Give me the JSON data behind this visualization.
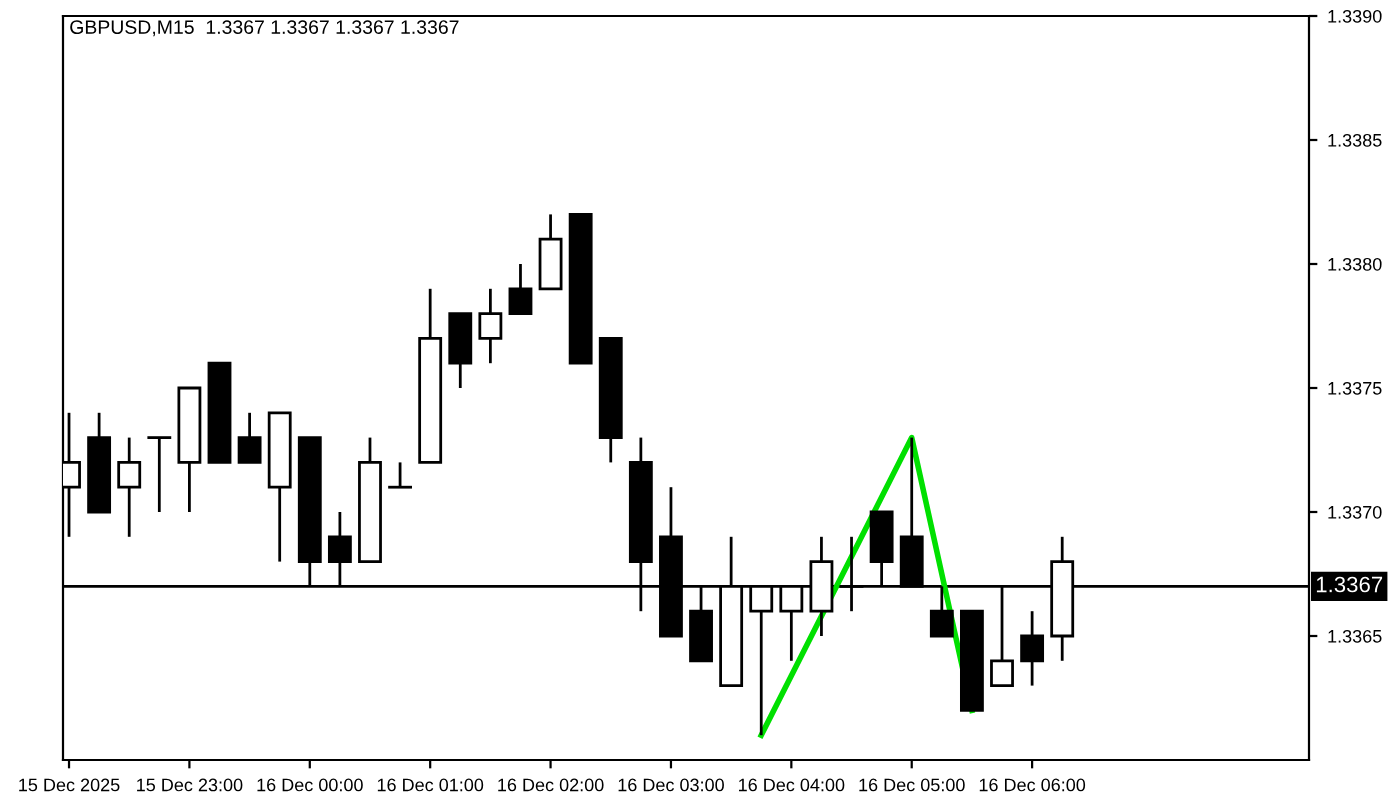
{
  "chart_data": {
    "type": "candlestick",
    "title": "GBPUSD,M15  1.3367 1.3367 1.3367 1.3367",
    "x": [
      "2025-12-15T22:00",
      "2025-12-15T22:15",
      "2025-12-15T22:30",
      "2025-12-15T22:45",
      "2025-12-15T23:00",
      "2025-12-15T23:15",
      "2025-12-15T23:30",
      "2025-12-15T23:45",
      "2025-12-16T00:00",
      "2025-12-16T00:15",
      "2025-12-16T00:30",
      "2025-12-16T00:45",
      "2025-12-16T01:00",
      "2025-12-16T01:15",
      "2025-12-16T01:30",
      "2025-12-16T01:45",
      "2025-12-16T02:00",
      "2025-12-16T02:15",
      "2025-12-16T02:30",
      "2025-12-16T02:45",
      "2025-12-16T03:00",
      "2025-12-16T03:15",
      "2025-12-16T03:30",
      "2025-12-16T03:45",
      "2025-12-16T04:00",
      "2025-12-16T04:15",
      "2025-12-16T04:30",
      "2025-12-16T04:45",
      "2025-12-16T05:00",
      "2025-12-16T05:15",
      "2025-12-16T05:30",
      "2025-12-16T05:45",
      "2025-12-16T06:00",
      "2025-12-16T06:15"
    ],
    "ohlc": [
      [
        1.3371,
        1.3374,
        1.3369,
        1.3372
      ],
      [
        1.3373,
        1.3374,
        1.337,
        1.337
      ],
      [
        1.3371,
        1.3373,
        1.3369,
        1.3372
      ],
      [
        1.3373,
        1.3373,
        1.337,
        1.3373
      ],
      [
        1.3372,
        1.3375,
        1.337,
        1.3375
      ],
      [
        1.3376,
        1.3376,
        1.3372,
        1.3372
      ],
      [
        1.3373,
        1.3374,
        1.3372,
        1.3372
      ],
      [
        1.3371,
        1.3374,
        1.3368,
        1.3374
      ],
      [
        1.3373,
        1.3373,
        1.3367,
        1.3368
      ],
      [
        1.3369,
        1.337,
        1.3367,
        1.3368
      ],
      [
        1.3368,
        1.3373,
        1.3368,
        1.3372
      ],
      [
        1.3371,
        1.3372,
        1.3371,
        1.3371
      ],
      [
        1.3372,
        1.3379,
        1.3372,
        1.3377
      ],
      [
        1.3378,
        1.3378,
        1.3375,
        1.3376
      ],
      [
        1.3377,
        1.3379,
        1.3376,
        1.3378
      ],
      [
        1.3379,
        1.338,
        1.3378,
        1.3378
      ],
      [
        1.3379,
        1.3382,
        1.3379,
        1.3381
      ],
      [
        1.3382,
        1.3382,
        1.3376,
        1.3376
      ],
      [
        1.3377,
        1.3377,
        1.3372,
        1.3373
      ],
      [
        1.3372,
        1.3373,
        1.3366,
        1.3368
      ],
      [
        1.3369,
        1.3371,
        1.3365,
        1.3365
      ],
      [
        1.3366,
        1.3367,
        1.3364,
        1.3364
      ],
      [
        1.3363,
        1.3369,
        1.3363,
        1.3367
      ],
      [
        1.3366,
        1.3367,
        1.3361,
        1.3367
      ],
      [
        1.3366,
        1.3367,
        1.3364,
        1.3367
      ],
      [
        1.3366,
        1.3369,
        1.3365,
        1.3368
      ],
      [
        1.3367,
        1.3369,
        1.3366,
        1.3367
      ],
      [
        1.337,
        1.337,
        1.3367,
        1.3368
      ],
      [
        1.3369,
        1.3373,
        1.3367,
        1.3367
      ],
      [
        1.3366,
        1.3367,
        1.3365,
        1.3365
      ],
      [
        1.3366,
        1.3366,
        1.3362,
        1.3362
      ],
      [
        1.3363,
        1.3367,
        1.3363,
        1.3364
      ],
      [
        1.3365,
        1.3366,
        1.3363,
        1.3364
      ],
      [
        1.3365,
        1.3369,
        1.3364,
        1.3368
      ]
    ],
    "series": [
      {
        "type": "line",
        "color": "#00e000",
        "x": [
          "2025-12-16T03:45",
          "2025-12-16T05:00",
          "2025-12-16T05:30"
        ],
        "values": [
          1.3361,
          1.3373,
          1.3362
        ]
      }
    ],
    "ref_lines": [
      {
        "axis": "y",
        "value": 1.3367,
        "label": "1.3367",
        "color": "#000000"
      }
    ],
    "xlim": [
      "2025-12-15T21:57",
      "2025-12-16T08:18"
    ],
    "xticks": [
      {
        "value": "2025-12-15T22:00",
        "label": "15 Dec 2025"
      },
      {
        "value": "2025-12-15T23:00",
        "label": "15 Dec 23:00"
      },
      {
        "value": "2025-12-16T00:00",
        "label": "16 Dec 00:00"
      },
      {
        "value": "2025-12-16T01:00",
        "label": "16 Dec 01:00"
      },
      {
        "value": "2025-12-16T02:00",
        "label": "16 Dec 02:00"
      },
      {
        "value": "2025-12-16T03:00",
        "label": "16 Dec 03:00"
      },
      {
        "value": "2025-12-16T04:00",
        "label": "16 Dec 04:00"
      },
      {
        "value": "2025-12-16T05:00",
        "label": "16 Dec 05:00"
      },
      {
        "value": "2025-12-16T06:00",
        "label": "16 Dec 06:00"
      }
    ],
    "ylim": [
      1.336,
      1.339
    ],
    "yticks": [
      1.3365,
      {
        "value": 1.337,
        "label": "1.3370"
      },
      1.3375,
      {
        "value": 1.338,
        "label": "1.3380"
      },
      1.3385,
      {
        "value": 1.339,
        "label": "1.3390"
      }
    ],
    "grid": false
  }
}
